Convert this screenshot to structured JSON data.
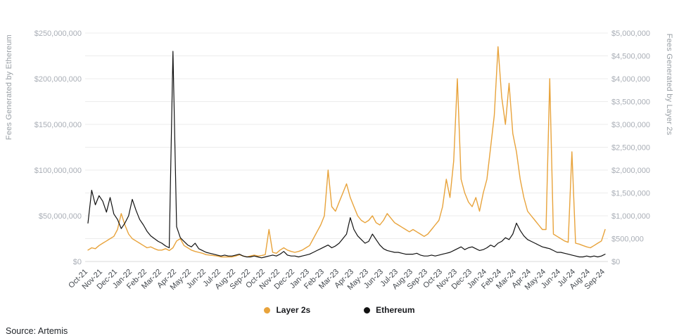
{
  "page": {
    "background": "#ffffff",
    "source_note": "Source: Artemis"
  },
  "legend": {
    "position": "bottom-center",
    "items": [
      {
        "label": "Layer 2s",
        "color": "#E8A33B"
      },
      {
        "label": "Ethereum",
        "color": "#111111"
      }
    ]
  },
  "chart_data": {
    "type": "line",
    "grid": true,
    "points_per_month": 4,
    "x_tick_labels": [
      "Oct-21",
      "Nov-21",
      "Dec-21",
      "Jan-22",
      "Feb-22",
      "Mar-22",
      "Apr-22",
      "May-22",
      "Jun-22",
      "Jul-22",
      "Aug-22",
      "Sep-22",
      "Oct-22",
      "Nov-22",
      "Dec-22",
      "Jan-23",
      "Feb-23",
      "Mar-23",
      "Apr-23",
      "May-23",
      "Jun-23",
      "Jul-23",
      "Aug-23",
      "Sep-23",
      "Oct-23",
      "Nov-23",
      "Dec-23",
      "Jan-24",
      "Feb-24",
      "Mar-24",
      "Apr-24",
      "May-24",
      "Jun-24",
      "Jul-24",
      "Aug-24",
      "Sep-24"
    ],
    "left_axis": {
      "label": "Fees Generated by Ethereum",
      "tick_labels": [
        "$0",
        "$50,000,000",
        "$100,000,000",
        "$150,000,000",
        "$200,000,000",
        "$250,000,000"
      ],
      "lim_usd_millions": [
        0,
        250
      ]
    },
    "right_axis": {
      "label": "Fees Generated by Layer 2s",
      "tick_labels": [
        "$0",
        "$500,000",
        "$1,000,000",
        "$1,500,000",
        "$2,000,000",
        "$2,500,000",
        "$3,000,000",
        "$3,500,000",
        "$4,000,000",
        "$4,500,000",
        "$5,000,000"
      ],
      "lim_usd_millions": [
        0,
        5
      ]
    },
    "series": [
      {
        "name": "Layer 2s",
        "axis": "right",
        "color": "#E8A33B",
        "values_usd_millions": [
          0.25,
          0.3,
          0.28,
          0.35,
          0.4,
          0.45,
          0.5,
          0.55,
          0.7,
          1.05,
          0.8,
          0.6,
          0.5,
          0.45,
          0.4,
          0.35,
          0.3,
          0.32,
          0.28,
          0.25,
          0.25,
          0.28,
          0.24,
          0.3,
          0.45,
          0.5,
          0.35,
          0.3,
          0.25,
          0.22,
          0.2,
          0.18,
          0.15,
          0.14,
          0.13,
          0.12,
          0.1,
          0.1,
          0.1,
          0.1,
          0.12,
          0.15,
          0.12,
          0.1,
          0.12,
          0.14,
          0.12,
          0.13,
          0.15,
          0.7,
          0.2,
          0.18,
          0.25,
          0.3,
          0.25,
          0.22,
          0.2,
          0.22,
          0.25,
          0.3,
          0.35,
          0.5,
          0.65,
          0.8,
          1.0,
          2.0,
          1.2,
          1.1,
          1.3,
          1.5,
          1.7,
          1.4,
          1.2,
          1.0,
          0.9,
          0.85,
          0.9,
          1.0,
          0.85,
          0.8,
          0.9,
          1.05,
          0.95,
          0.85,
          0.8,
          0.75,
          0.7,
          0.65,
          0.7,
          0.65,
          0.6,
          0.55,
          0.6,
          0.7,
          0.8,
          0.9,
          1.2,
          1.8,
          1.4,
          2.2,
          4.0,
          1.8,
          1.5,
          1.3,
          1.2,
          1.4,
          1.1,
          1.5,
          1.8,
          2.5,
          3.2,
          4.7,
          3.6,
          3.0,
          3.9,
          2.8,
          2.4,
          1.8,
          1.4,
          1.1,
          1.0,
          0.9,
          0.8,
          0.7,
          0.7,
          4.0,
          0.6,
          0.55,
          0.5,
          0.45,
          0.42,
          2.4,
          0.4,
          0.38,
          0.35,
          0.32,
          0.3,
          0.35,
          0.4,
          0.45,
          0.7
        ]
      },
      {
        "name": "Ethereum",
        "axis": "left",
        "color": "#111111",
        "values_usd_millions": [
          42,
          78,
          62,
          72,
          66,
          54,
          70,
          52,
          46,
          36,
          42,
          50,
          68,
          56,
          46,
          40,
          33,
          28,
          25,
          22,
          20,
          17,
          15,
          230,
          38,
          26,
          22,
          18,
          16,
          20,
          14,
          12,
          10,
          9,
          8,
          7,
          6,
          7,
          6,
          6,
          7,
          8,
          6,
          5,
          5,
          6,
          5,
          4,
          5,
          6,
          7,
          6,
          8,
          11,
          7,
          6,
          6,
          5,
          6,
          7,
          8,
          10,
          12,
          14,
          16,
          18,
          15,
          17,
          20,
          25,
          30,
          48,
          35,
          28,
          24,
          20,
          22,
          30,
          24,
          18,
          14,
          12,
          11,
          10,
          10,
          9,
          8,
          8,
          8,
          9,
          7,
          6,
          6,
          7,
          6,
          7,
          8,
          9,
          10,
          12,
          14,
          16,
          13,
          15,
          16,
          14,
          12,
          13,
          15,
          18,
          16,
          20,
          22,
          26,
          24,
          30,
          42,
          34,
          28,
          24,
          22,
          20,
          18,
          16,
          15,
          14,
          12,
          10,
          10,
          9,
          8,
          7,
          6,
          5,
          5,
          6,
          5,
          6,
          5,
          6,
          8
        ]
      }
    ]
  }
}
